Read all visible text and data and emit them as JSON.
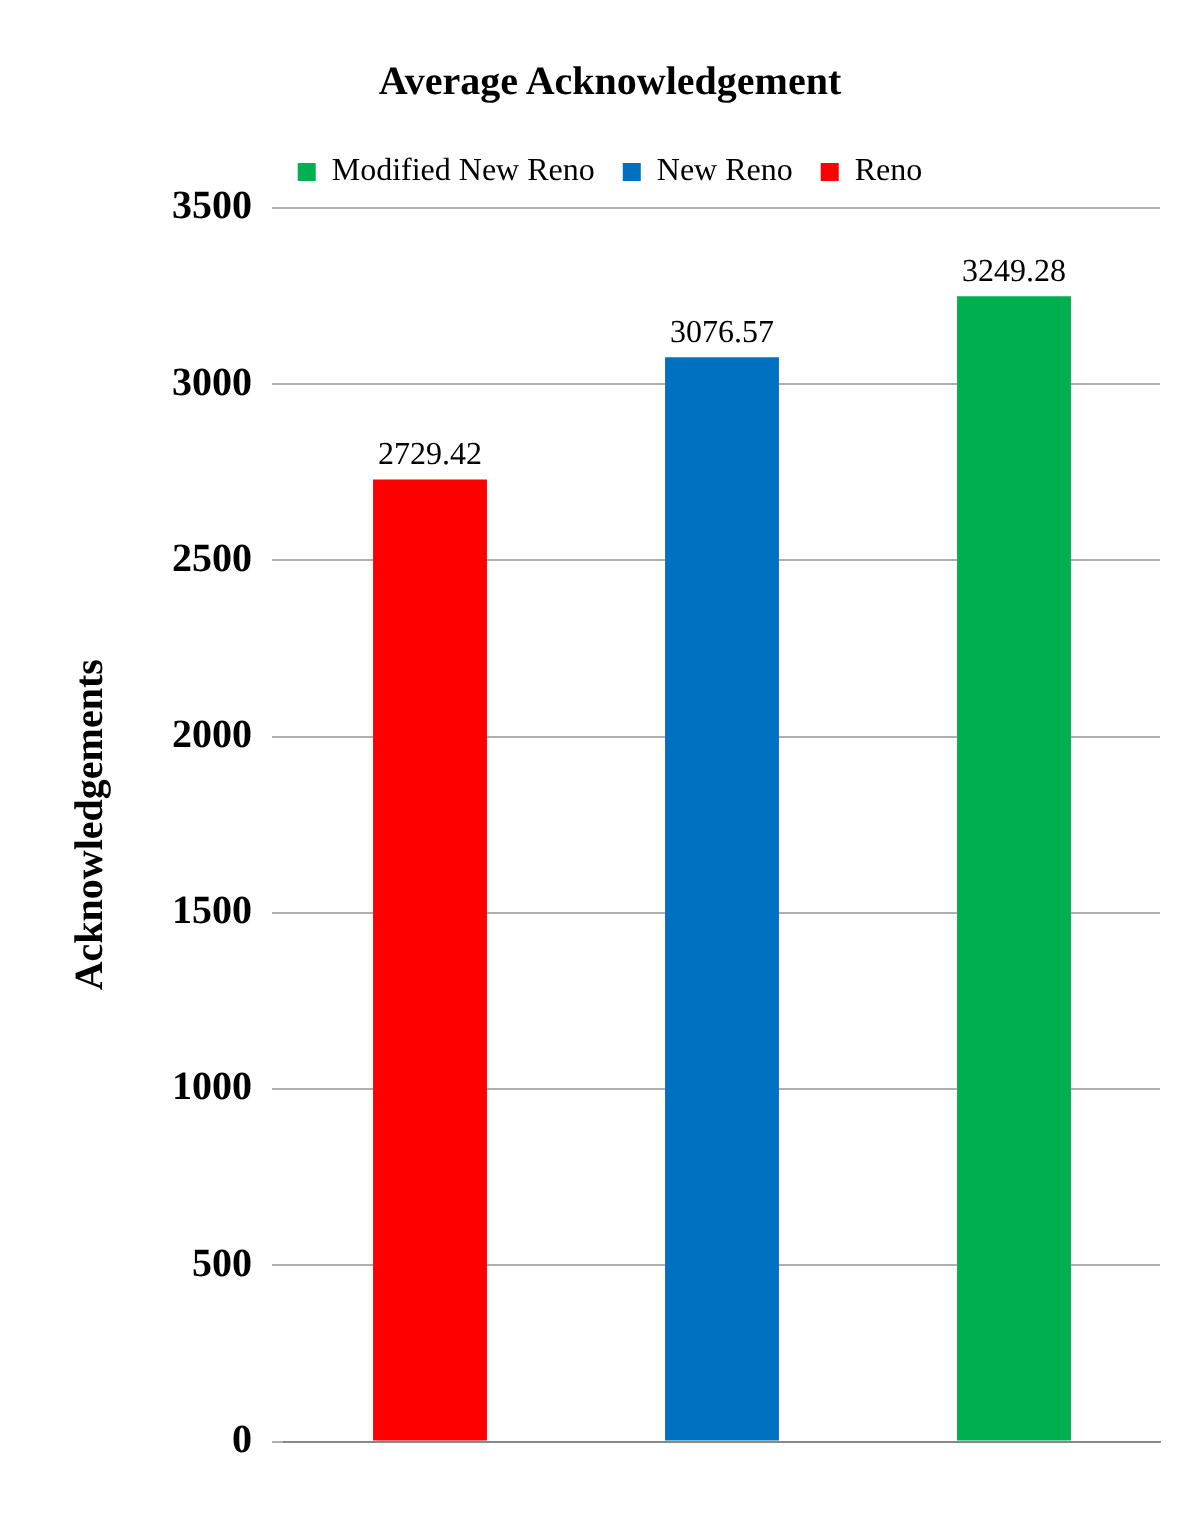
{
  "chart_data": {
    "type": "bar",
    "title": "Average Acknowledgement",
    "ylabel": "Acknowledgements",
    "categories": [
      null,
      null,
      null
    ],
    "series": [
      {
        "name": "Modified New Reno",
        "color": "#00b050",
        "values": [
          null,
          null,
          3249.28
        ]
      },
      {
        "name": "New Reno",
        "color": "#0070c0",
        "values": [
          null,
          3076.57,
          null
        ]
      },
      {
        "name": "Reno",
        "color": "#ff0000",
        "values": [
          2729.42,
          null,
          null
        ]
      }
    ],
    "ylim": [
      0,
      3500
    ],
    "yticks": [
      0,
      500,
      1000,
      1500,
      2000,
      2500,
      3000,
      3500
    ],
    "grid": "y",
    "legend": "top",
    "data_labels": true
  }
}
